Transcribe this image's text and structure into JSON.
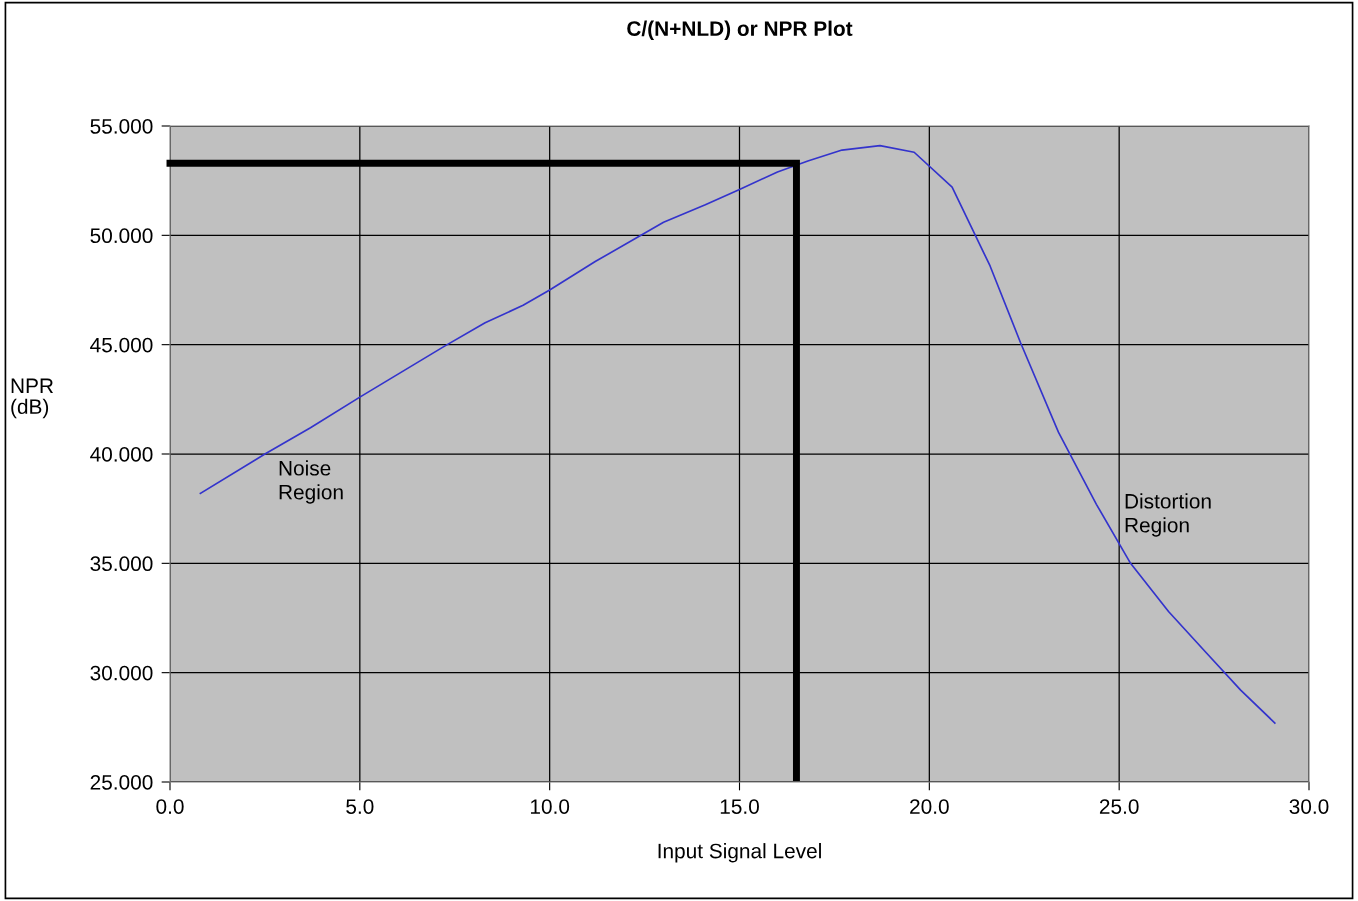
{
  "chart_data": {
    "type": "line",
    "title": "C/(N+NLD) or NPR Plot",
    "xlabel": "Input Signal Level",
    "ylabel": "NPR\n(dB)",
    "xlim": [
      0,
      30
    ],
    "ylim": [
      25,
      55
    ],
    "xticks": [
      {
        "value": 0,
        "label": "0.0"
      },
      {
        "value": 5,
        "label": "5.0"
      },
      {
        "value": 10,
        "label": "10.0"
      },
      {
        "value": 15,
        "label": "15.0"
      },
      {
        "value": 20,
        "label": "20.0"
      },
      {
        "value": 25,
        "label": "25.0"
      },
      {
        "value": 30,
        "label": "30.0"
      }
    ],
    "yticks": [
      {
        "value": 25,
        "label": "25.000"
      },
      {
        "value": 30,
        "label": "30.000"
      },
      {
        "value": 35,
        "label": "35.000"
      },
      {
        "value": 40,
        "label": "40.000"
      },
      {
        "value": 45,
        "label": "45.000"
      },
      {
        "value": 50,
        "label": "50.000"
      },
      {
        "value": 55,
        "label": "55.000"
      }
    ],
    "grid": true,
    "marker": "none",
    "line_style": "solid",
    "series": [
      {
        "color": "#3333cc",
        "x": [
          0.8,
          2.5,
          3.7,
          5.0,
          7.2,
          8.3,
          9.3,
          10.0,
          11.2,
          13.0,
          14.1,
          15.0,
          16.0,
          16.8,
          17.7,
          18.7,
          19.6,
          20.6,
          21.6,
          22.4,
          23.4,
          24.4,
          25.3,
          26.3,
          27.3,
          28.2,
          29.1
        ],
        "values": [
          38.2,
          40.0,
          41.2,
          42.6,
          44.9,
          46.0,
          46.8,
          47.5,
          48.8,
          50.6,
          51.4,
          52.1,
          52.9,
          53.4,
          53.9,
          54.1,
          53.8,
          52.2,
          48.6,
          45.1,
          41.0,
          37.7,
          35.0,
          32.8,
          30.9,
          29.2,
          27.7
        ]
      },
      {
        "color": "#000000",
        "x": [
          0.0,
          16.5,
          16.5
        ],
        "values": [
          53.3,
          53.3,
          25.2
        ]
      }
    ],
    "annotations": [
      "Noise\nRegion",
      "Distortion\nRegion"
    ]
  }
}
